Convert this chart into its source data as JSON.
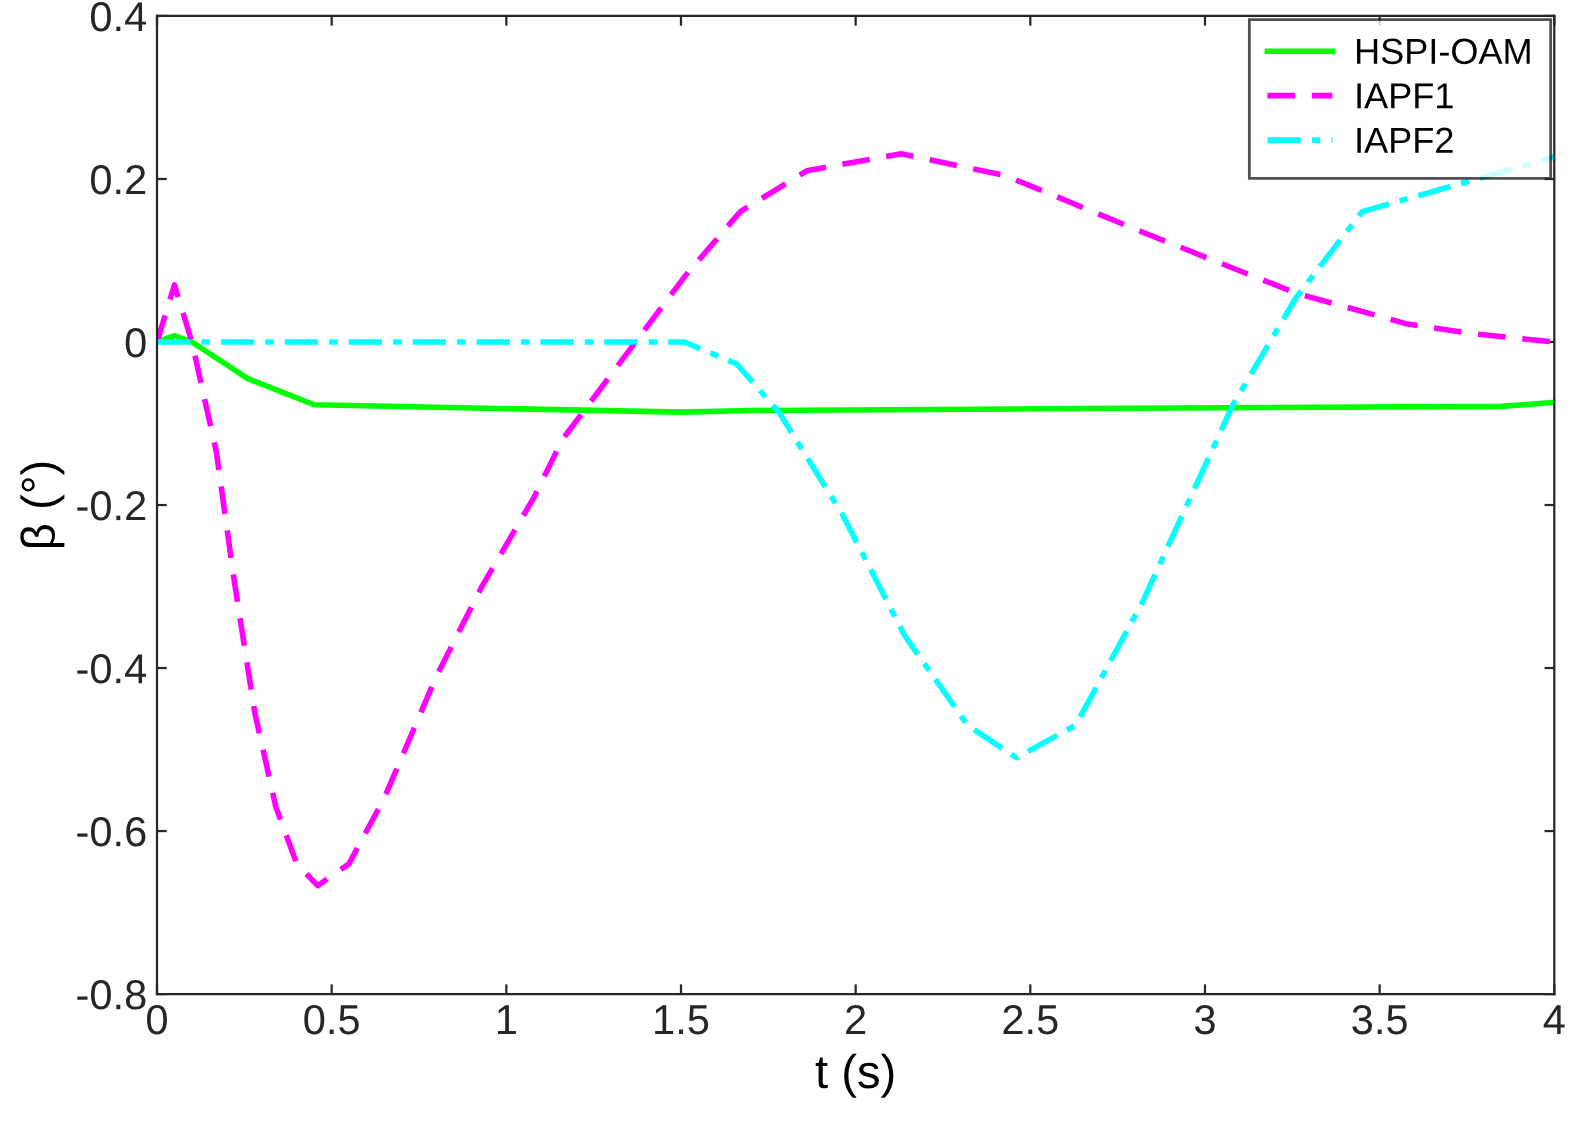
{
  "chart_data": {
    "type": "line",
    "xlabel": "t (s)",
    "ylabel": "β (°)",
    "xlim": [
      0,
      4
    ],
    "ylim": [
      -0.8,
      0.4
    ],
    "xticks": [
      0,
      0.5,
      1,
      1.5,
      2,
      2.5,
      3,
      3.5,
      4
    ],
    "yticks": [
      -0.8,
      -0.6,
      -0.4,
      -0.2,
      0,
      0.2,
      0.4
    ],
    "grid": false,
    "legend": "top right",
    "series": [
      {
        "name": "HSPI-OAM",
        "color": "#00ff00",
        "line_style": "solid",
        "x": [
          0,
          0.05,
          0.1,
          0.26,
          0.45,
          0.8,
          1.5,
          1.7,
          2.5,
          3.85,
          4
        ],
        "values": [
          0,
          0.008,
          0,
          -0.045,
          -0.077,
          -0.08,
          -0.086,
          -0.084,
          -0.082,
          -0.079,
          -0.074
        ]
      },
      {
        "name": "IAPF1",
        "color": "#ff00ff",
        "line_style": "dashed",
        "x": [
          0,
          0.05,
          0.1,
          0.17,
          0.22,
          0.28,
          0.34,
          0.4,
          0.46,
          0.55,
          0.65,
          0.8,
          0.93,
          1.08,
          1.16,
          1.37,
          1.51,
          1.67,
          1.86,
          2.13,
          2.43,
          2.82,
          3.26,
          3.58,
          3.77,
          4
        ],
        "values": [
          0,
          0.07,
          0,
          -0.135,
          -0.29,
          -0.455,
          -0.57,
          -0.64,
          -0.667,
          -0.64,
          -0.56,
          -0.41,
          -0.3,
          -0.19,
          -0.12,
          0,
          0.08,
          0.16,
          0.21,
          0.231,
          0.204,
          0.135,
          0.06,
          0.022,
          0.01,
          0
        ]
      },
      {
        "name": "IAPF2",
        "color": "#00ffff",
        "line_style": "dashdot",
        "x": [
          0,
          1.51,
          1.66,
          1.78,
          1.96,
          2.14,
          2.32,
          2.46,
          2.63,
          2.82,
          3.08,
          3.26,
          3.45,
          4
        ],
        "values": [
          0,
          0,
          -0.027,
          -0.086,
          -0.21,
          -0.36,
          -0.47,
          -0.51,
          -0.47,
          -0.32,
          -0.077,
          0.054,
          0.16,
          0.227
        ]
      }
    ]
  }
}
